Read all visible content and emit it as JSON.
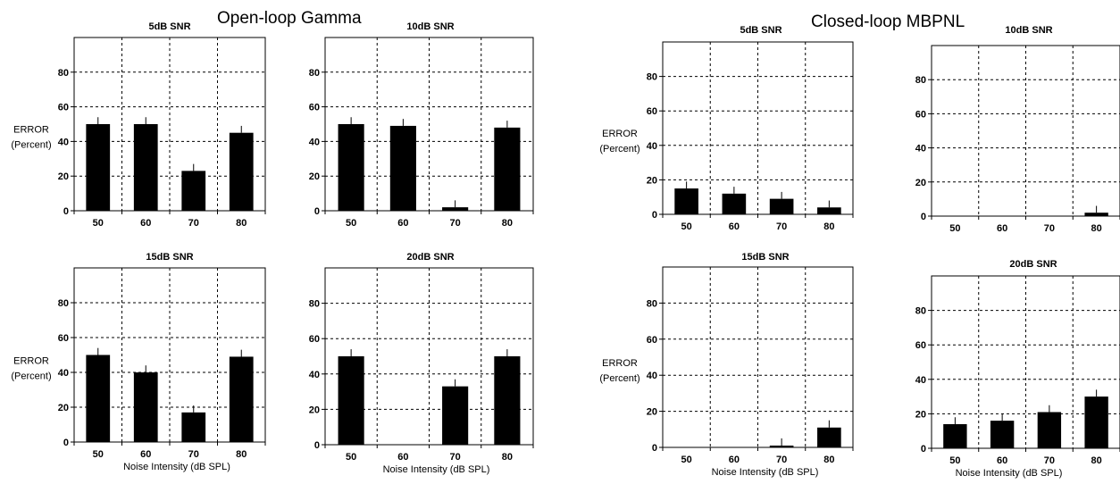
{
  "groups": [
    {
      "title": "Open-loop Gamma"
    },
    {
      "title": "Closed-loop MBPNL"
    }
  ],
  "chart_data": [
    {
      "type": "bar",
      "group": "Open-loop Gamma",
      "title": "5dB SNR",
      "ylabel": [
        "ERROR",
        "(Percent)"
      ],
      "xlabel": "",
      "categories": [
        "50",
        "60",
        "70",
        "80"
      ],
      "values": [
        50,
        50,
        23,
        45
      ],
      "ylim": [
        0,
        100
      ],
      "yticks": [
        0,
        20,
        40,
        60,
        80
      ],
      "grid": true
    },
    {
      "type": "bar",
      "group": "Open-loop Gamma",
      "title": "10dB SNR",
      "ylabel": [],
      "xlabel": "",
      "categories": [
        "50",
        "60",
        "70",
        "80"
      ],
      "values": [
        50,
        49,
        2,
        48
      ],
      "ylim": [
        0,
        100
      ],
      "yticks": [
        0,
        20,
        40,
        60,
        80
      ],
      "grid": true
    },
    {
      "type": "bar",
      "group": "Open-loop Gamma",
      "title": "15dB SNR",
      "ylabel": [
        "ERROR",
        "(Percent)"
      ],
      "xlabel": "Noise Intensity (dB SPL)",
      "categories": [
        "50",
        "60",
        "70",
        "80"
      ],
      "values": [
        50,
        40,
        17,
        49
      ],
      "ylim": [
        0,
        100
      ],
      "yticks": [
        0,
        20,
        40,
        60,
        80
      ],
      "grid": true
    },
    {
      "type": "bar",
      "group": "Open-loop Gamma",
      "title": "20dB SNR",
      "ylabel": [],
      "xlabel": "Noise Intensity (dB SPL)",
      "categories": [
        "50",
        "60",
        "70",
        "80"
      ],
      "values": [
        50,
        0,
        33,
        50
      ],
      "ylim": [
        0,
        100
      ],
      "yticks": [
        0,
        20,
        40,
        60,
        80
      ],
      "grid": true
    },
    {
      "type": "bar",
      "group": "Closed-loop MBPNL",
      "title": "5dB SNR",
      "ylabel": [
        "ERROR",
        "(Percent)"
      ],
      "xlabel": "",
      "categories": [
        "50",
        "60",
        "70",
        "80"
      ],
      "values": [
        15,
        12,
        9,
        4
      ],
      "ylim": [
        0,
        100
      ],
      "yticks": [
        0,
        20,
        40,
        60,
        80
      ],
      "grid": true
    },
    {
      "type": "bar",
      "group": "Closed-loop MBPNL",
      "title": "10dB SNR",
      "ylabel": [],
      "xlabel": "",
      "categories": [
        "50",
        "60",
        "70",
        "80"
      ],
      "values": [
        0,
        0,
        0,
        2
      ],
      "ylim": [
        0,
        100
      ],
      "yticks": [
        0,
        20,
        40,
        60,
        80
      ],
      "grid": true
    },
    {
      "type": "bar",
      "group": "Closed-loop MBPNL",
      "title": "15dB SNR",
      "ylabel": [
        "ERROR",
        "(Percent)"
      ],
      "xlabel": "Noise Intensity (dB SPL)",
      "categories": [
        "50",
        "60",
        "70",
        "80"
      ],
      "values": [
        0,
        0,
        1,
        11
      ],
      "ylim": [
        0,
        100
      ],
      "yticks": [
        0,
        20,
        40,
        60,
        80
      ],
      "grid": true
    },
    {
      "type": "bar",
      "group": "Closed-loop MBPNL",
      "title": "20dB SNR",
      "ylabel": [],
      "xlabel": "Noise Intensity (dB SPL)",
      "categories": [
        "50",
        "60",
        "70",
        "80"
      ],
      "values": [
        14,
        16,
        21,
        30
      ],
      "ylim": [
        0,
        100
      ],
      "yticks": [
        0,
        20,
        40,
        60,
        80
      ],
      "grid": true
    }
  ]
}
